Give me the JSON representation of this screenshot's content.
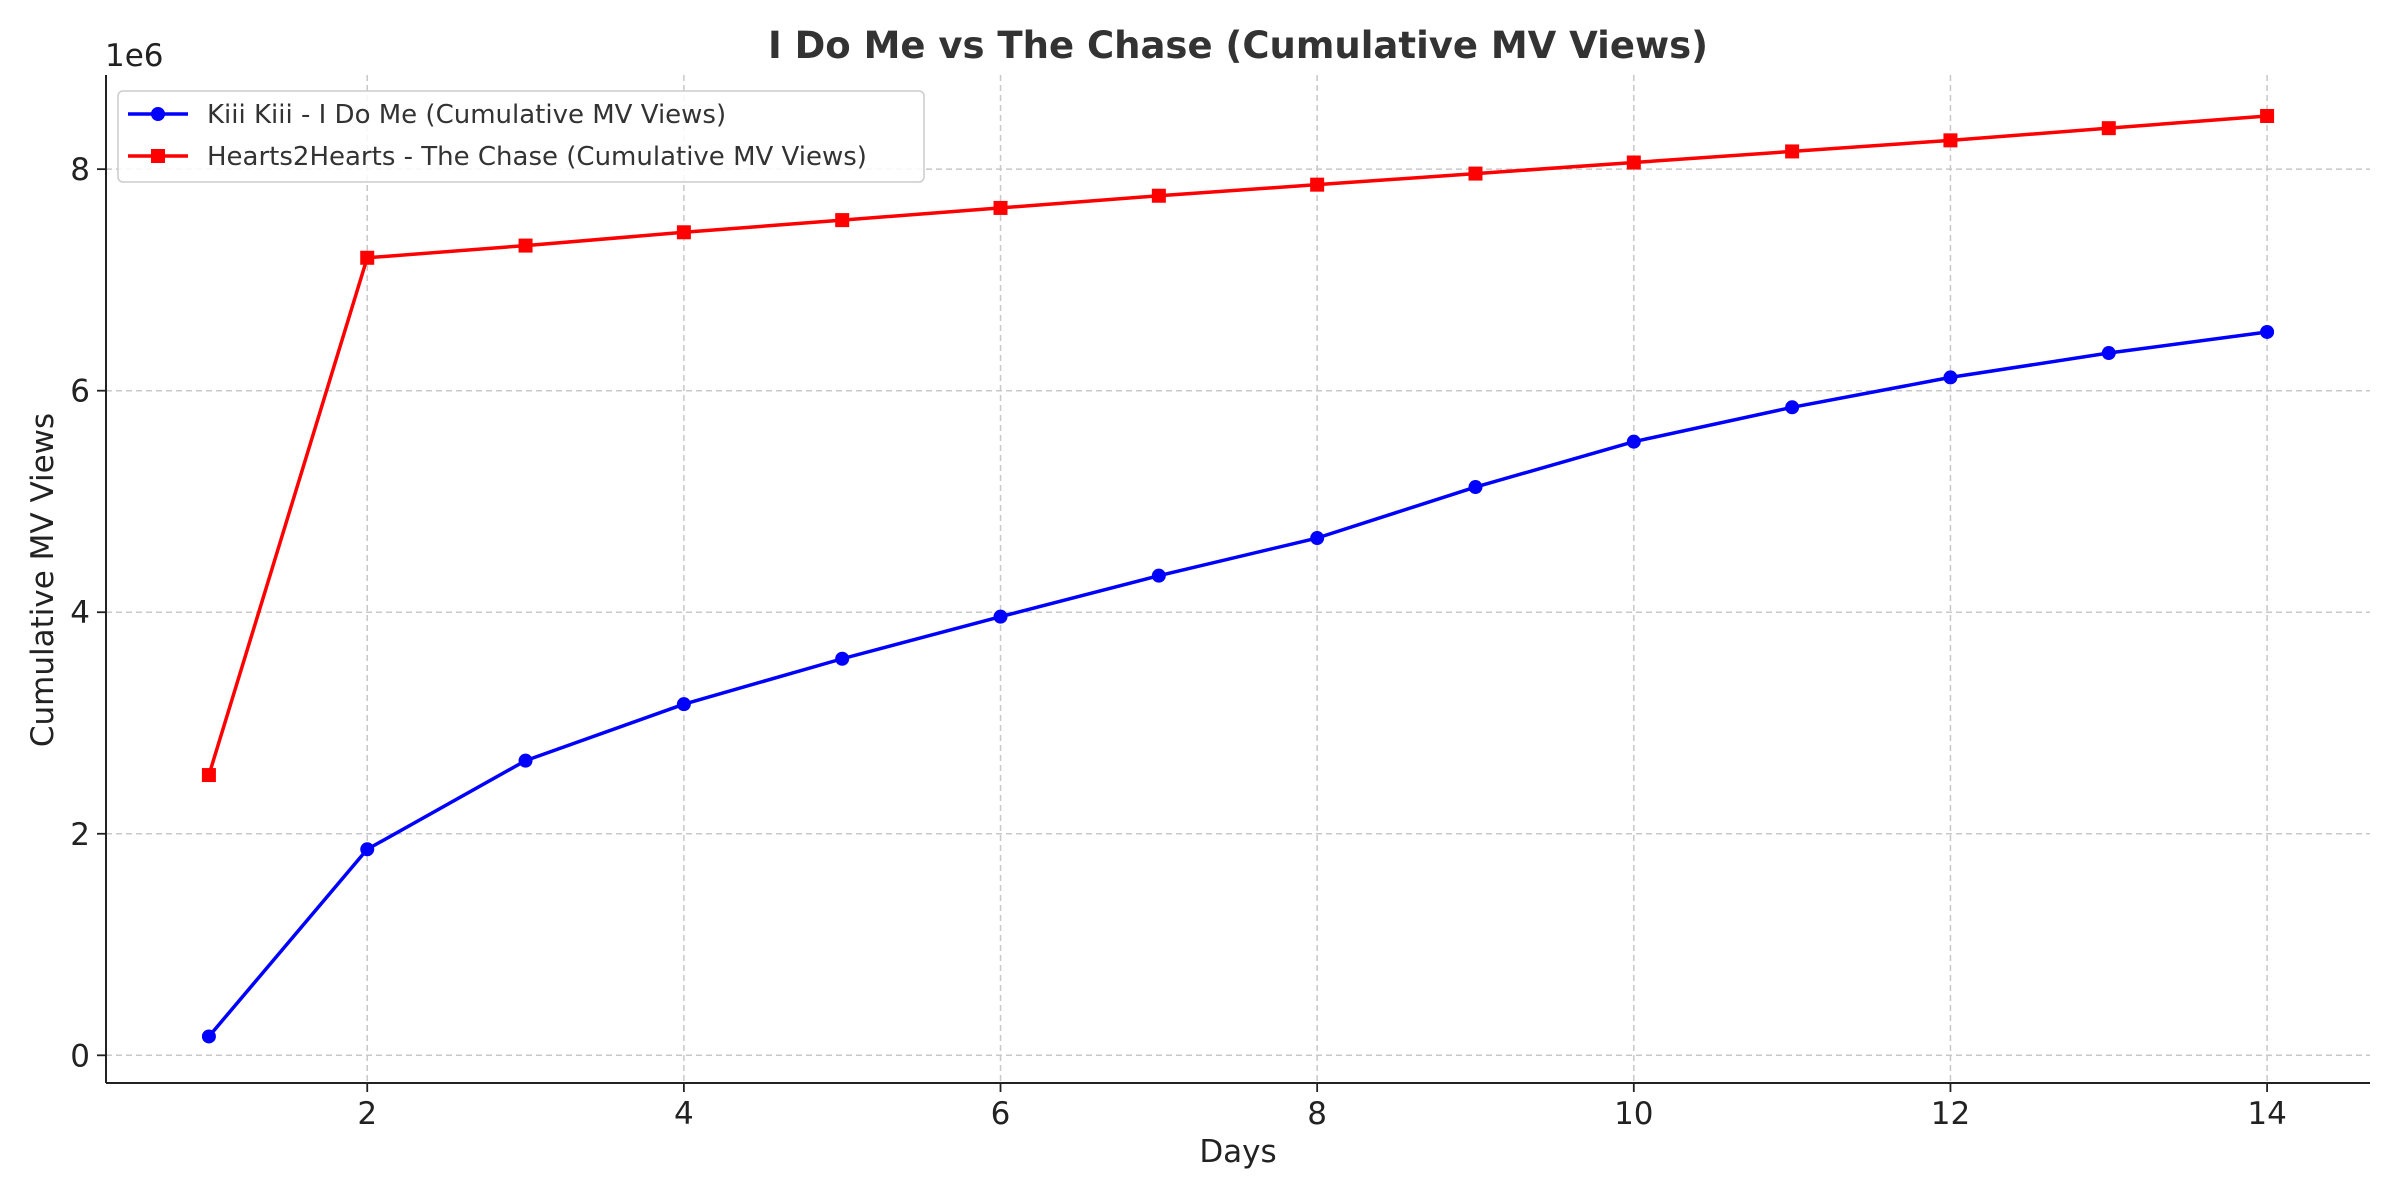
{
  "chart_data": {
    "type": "line",
    "title": "I Do Me vs The Chase (Cumulative MV Views)",
    "xlabel": "Days",
    "ylabel": "Cumulative MV Views",
    "y_scale_label": "1e6",
    "x": [
      1,
      2,
      3,
      4,
      5,
      6,
      7,
      8,
      9,
      10,
      11,
      12,
      13,
      14
    ],
    "xlim": [
      0.35,
      14.65
    ],
    "ylim": [
      -250000,
      8850000
    ],
    "x_ticks": [
      2,
      4,
      6,
      8,
      10,
      12,
      14
    ],
    "x_tick_labels": [
      "2",
      "4",
      "6",
      "8",
      "10",
      "12",
      "14"
    ],
    "y_ticks": [
      0,
      2000000,
      4000000,
      6000000,
      8000000
    ],
    "y_tick_labels": [
      "0",
      "2",
      "4",
      "6",
      "8"
    ],
    "grid": true,
    "legend_position": "top-left",
    "series": [
      {
        "name": "Kiii Kiii - I Do Me (Cumulative MV Views)",
        "color": "#0000ff",
        "marker": "circle",
        "values": [
          170000,
          1860000,
          2660000,
          3170000,
          3580000,
          3960000,
          4330000,
          4670000,
          5130000,
          5540000,
          5850000,
          6120000,
          6340000,
          6530000
        ]
      },
      {
        "name": "Hearts2Hearts - The Chase (Cumulative MV Views)",
        "color": "#ff0000",
        "marker": "square",
        "values": [
          2530000,
          7200000,
          7310000,
          7430000,
          7540000,
          7650000,
          7760000,
          7860000,
          7960000,
          8060000,
          8160000,
          8260000,
          8370000,
          8480000
        ]
      }
    ]
  }
}
